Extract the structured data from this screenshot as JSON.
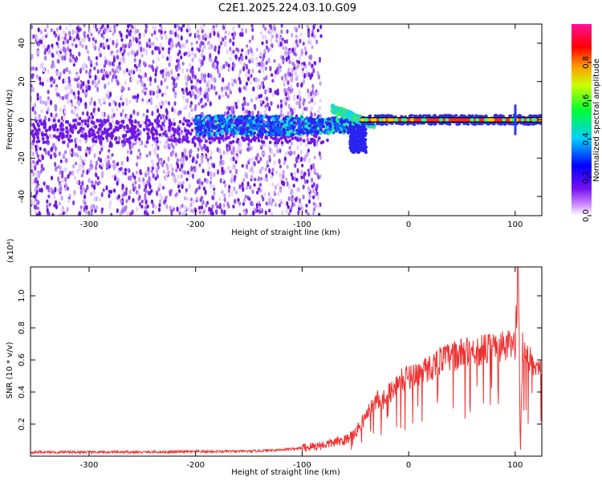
{
  "title": "C2E1.2025.224.03.10.G09",
  "chart_data": [
    {
      "type": "heatmap",
      "xlabel": "Height of straight line (km)",
      "ylabel": "Frequency (Hz)",
      "xlim": [
        -355,
        125
      ],
      "ylim": [
        -50,
        50
      ],
      "xticks": [
        -300,
        -200,
        -100,
        0,
        100
      ],
      "yticks": [
        -40,
        -20,
        0,
        20,
        40
      ],
      "colorbar": {
        "label": "Normalized spectral amplitude",
        "range": [
          0.0,
          1.0
        ],
        "ticks": [
          "0.0",
          "0.2",
          "0.4",
          "0.6",
          "0.8"
        ],
        "colormap": "rainbow (white - purple - blue - cyan - green - yellow - red - pink)"
      },
      "features": {
        "noise_region_x": [
          -355,
          -82
        ],
        "signal_track_freq_hz": 0,
        "signal_track_x": [
          -200,
          125
        ],
        "strong_signal_x": [
          -45,
          125
        ]
      },
      "grid": false,
      "legend": "none"
    },
    {
      "type": "line",
      "xlabel": "Height of straight line (km)",
      "ylabel": "SNR (10 * v/v)",
      "yscale_label": "(x10⁴)",
      "xlim": [
        -355,
        125
      ],
      "ylim": [
        0,
        1.18
      ],
      "xticks": [
        -300,
        -200,
        -100,
        0,
        100
      ],
      "yticks": [
        0.2,
        0.4,
        0.6,
        0.8,
        1.0
      ],
      "series": [
        {
          "color": "#ee3333",
          "x": [
            -355,
            -300,
            -250,
            -200,
            -150,
            -120,
            -100,
            -80,
            -60,
            -50,
            -45,
            -40,
            -35,
            -30,
            -25,
            -20,
            -15,
            -10,
            -5,
            0,
            10,
            20,
            30,
            40,
            50,
            60,
            70,
            80,
            90,
            100,
            103,
            105,
            107,
            110,
            115,
            120,
            125
          ],
          "y": [
            0.025,
            0.025,
            0.025,
            0.028,
            0.03,
            0.04,
            0.05,
            0.07,
            0.1,
            0.14,
            0.2,
            0.25,
            0.3,
            0.35,
            0.35,
            0.38,
            0.42,
            0.45,
            0.48,
            0.5,
            0.52,
            0.55,
            0.6,
            0.62,
            0.64,
            0.66,
            0.66,
            0.68,
            0.68,
            0.7,
            1.15,
            0.05,
            0.7,
            0.62,
            0.6,
            0.58,
            0.55
          ]
        }
      ],
      "grid": false,
      "legend": "none"
    }
  ]
}
